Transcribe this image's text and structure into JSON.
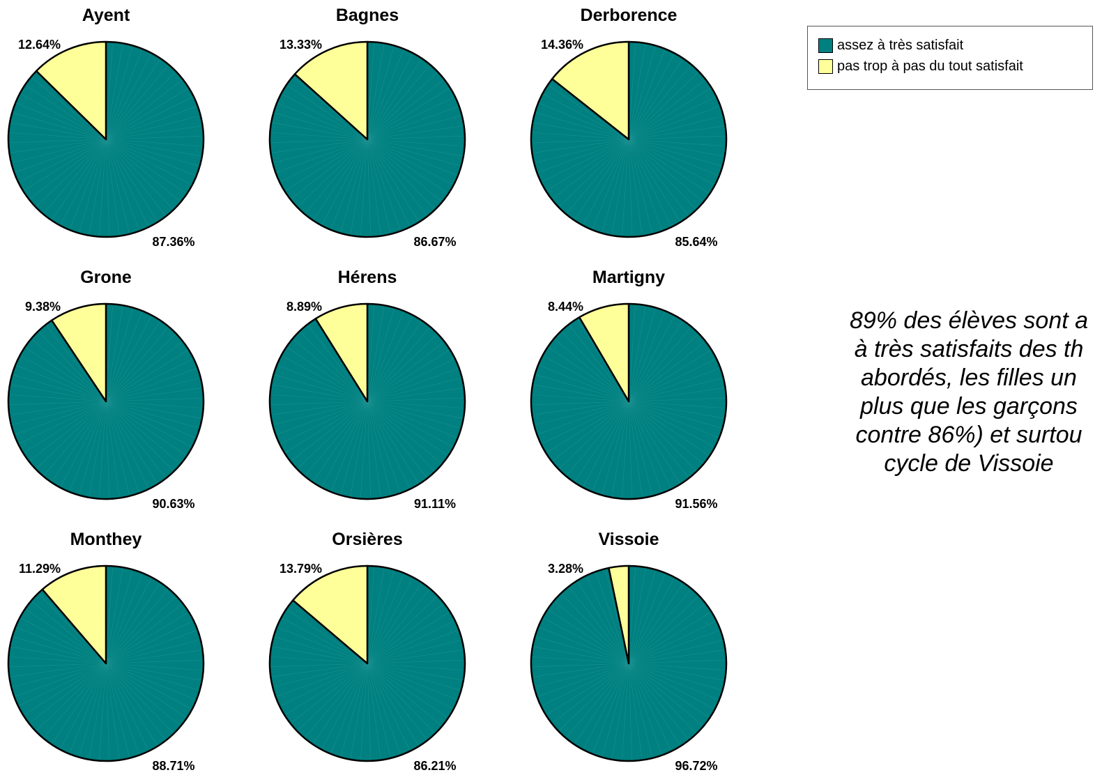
{
  "colors": {
    "satisfied": "#008080",
    "unsatisfied": "#FFFF99",
    "outline": "#000000"
  },
  "legend": {
    "items": [
      {
        "label": "assez à très satisfait",
        "color": "#008080"
      },
      {
        "label": "pas trop à pas du tout satisfait",
        "color": "#FFFF99"
      }
    ]
  },
  "note": {
    "lines": [
      "89% des élèves sont a",
      "à très satisfaits des th",
      "abordés, les filles un",
      "plus que les garçons",
      "contre 86%) et surtou",
      "cycle de Vissoie"
    ]
  },
  "chart_data": [
    {
      "type": "pie",
      "title": "Ayent",
      "values": [
        87.36,
        12.64
      ],
      "labels": [
        "87.36%",
        "12.64%"
      ],
      "categories": [
        "assez à très satisfait",
        "pas trop à pas du tout satisfait"
      ]
    },
    {
      "type": "pie",
      "title": "Bagnes",
      "values": [
        86.67,
        13.33
      ],
      "labels": [
        "86.67%",
        "13.33%"
      ],
      "categories": [
        "assez à très satisfait",
        "pas trop à pas du tout satisfait"
      ]
    },
    {
      "type": "pie",
      "title": "Derborence",
      "values": [
        85.64,
        14.36
      ],
      "labels": [
        "85.64%",
        "14.36%"
      ],
      "categories": [
        "assez à très satisfait",
        "pas trop à pas du tout satisfait"
      ]
    },
    {
      "type": "pie",
      "title": "Grone",
      "values": [
        90.63,
        9.38
      ],
      "labels": [
        "90.63%",
        "9.38%"
      ],
      "categories": [
        "assez à très satisfait",
        "pas trop à pas du tout satisfait"
      ]
    },
    {
      "type": "pie",
      "title": "Hérens",
      "values": [
        91.11,
        8.89
      ],
      "labels": [
        "91.11%",
        "8.89%"
      ],
      "categories": [
        "assez à très satisfait",
        "pas trop à pas du tout satisfait"
      ]
    },
    {
      "type": "pie",
      "title": "Martigny",
      "values": [
        91.56,
        8.44
      ],
      "labels": [
        "91.56%",
        "8.44%"
      ],
      "categories": [
        "assez à très satisfait",
        "pas trop à pas du tout satisfait"
      ]
    },
    {
      "type": "pie",
      "title": "Monthey",
      "values": [
        88.71,
        11.29
      ],
      "labels": [
        "88.71%",
        "11.29%"
      ],
      "categories": [
        "assez à très satisfait",
        "pas trop à pas du tout satisfait"
      ]
    },
    {
      "type": "pie",
      "title": "Orsières",
      "values": [
        86.21,
        13.79
      ],
      "labels": [
        "86.21%",
        "13.79%"
      ],
      "categories": [
        "assez à très satisfait",
        "pas trop à pas du tout satisfait"
      ]
    },
    {
      "type": "pie",
      "title": "Vissoie",
      "values": [
        96.72,
        3.28
      ],
      "labels": [
        "96.72%",
        "3.28%"
      ],
      "categories": [
        "assez à très satisfait",
        "pas trop à pas du tout satisfait"
      ]
    }
  ]
}
